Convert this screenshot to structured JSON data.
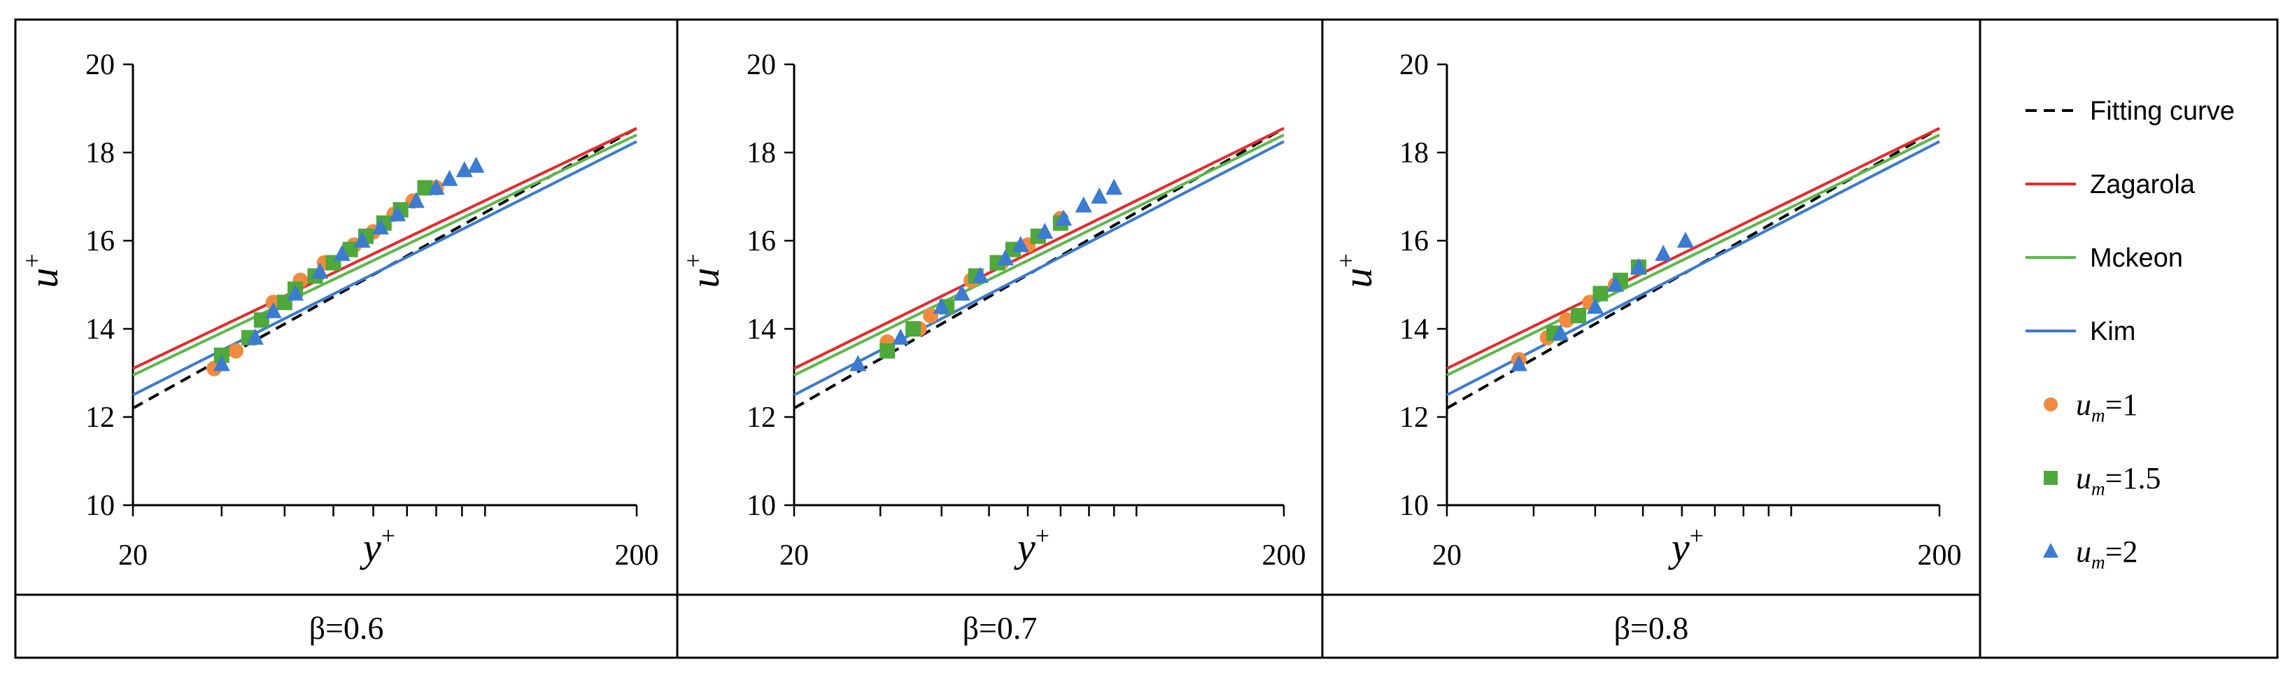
{
  "figure": {
    "panel_captions": [
      "β=0.6",
      "β=0.7",
      "β=0.8"
    ],
    "legend": [
      {
        "label": "Fitting curve",
        "kind": "dashed-line",
        "color": "#000000"
      },
      {
        "label": "Zagarola",
        "kind": "line",
        "color": "#e8292b"
      },
      {
        "label": "Mckeon",
        "kind": "line",
        "color": "#5cb84a"
      },
      {
        "label": "Kim",
        "kind": "line",
        "color": "#3b7bd0"
      },
      {
        "label_var": "u",
        "label_sub": "m",
        "label_rest": "=1",
        "kind": "circle",
        "color": "#f08a3e"
      },
      {
        "label_var": "u",
        "label_sub": "m",
        "label_rest": "=1.5",
        "kind": "square",
        "color": "#4ea83a"
      },
      {
        "label_var": "u",
        "label_sub": "m",
        "label_rest": "=2",
        "kind": "triangle",
        "color": "#3b7bd0"
      }
    ]
  },
  "chart_data": [
    {
      "type": "scatter",
      "caption": "β=0.6",
      "xlabel_var": "y",
      "xlabel_sup": "+",
      "ylabel_var": "u",
      "ylabel_sup": "+",
      "x_scale": "log",
      "xlim": [
        20,
        200
      ],
      "ylim": [
        10,
        20
      ],
      "x_tick_labels": [
        "20",
        "200"
      ],
      "y_ticks": [
        10,
        12,
        14,
        16,
        18,
        20
      ],
      "lines": [
        {
          "name": "Fitting curve",
          "style": "dashed",
          "color": "#000000",
          "points": [
            [
              20,
              12.2
            ],
            [
              200,
              18.55
            ]
          ]
        },
        {
          "name": "Zagarola",
          "style": "solid",
          "color": "#e8292b",
          "points": [
            [
              20,
              13.1
            ],
            [
              200,
              18.55
            ]
          ]
        },
        {
          "name": "Mckeon",
          "style": "solid",
          "color": "#5cb84a",
          "points": [
            [
              20,
              12.95
            ],
            [
              200,
              18.4
            ]
          ]
        },
        {
          "name": "Kim",
          "style": "solid",
          "color": "#3b7bd0",
          "points": [
            [
              20,
              12.5
            ],
            [
              200,
              18.25
            ]
          ]
        }
      ],
      "series": [
        {
          "name": "um=1",
          "marker": "circle",
          "color": "#f08a3e",
          "points": [
            [
              29,
              13.1
            ],
            [
              32,
              13.5
            ],
            [
              38,
              14.6
            ],
            [
              43,
              15.1
            ],
            [
              48,
              15.5
            ],
            [
              55,
              15.9
            ],
            [
              60,
              16.2
            ],
            [
              66,
              16.6
            ],
            [
              72,
              16.9
            ],
            [
              80,
              17.2
            ]
          ]
        },
        {
          "name": "um=1.5",
          "marker": "square",
          "color": "#4ea83a",
          "points": [
            [
              30,
              13.4
            ],
            [
              34,
              13.8
            ],
            [
              36,
              14.2
            ],
            [
              40,
              14.6
            ],
            [
              42,
              14.9
            ],
            [
              46,
              15.2
            ],
            [
              50,
              15.5
            ],
            [
              54,
              15.8
            ],
            [
              58,
              16.1
            ],
            [
              63,
              16.4
            ],
            [
              68,
              16.7
            ],
            [
              76,
              17.2
            ]
          ]
        },
        {
          "name": "um=2",
          "marker": "triangle",
          "color": "#3b7bd0",
          "points": [
            [
              30,
              13.2
            ],
            [
              35,
              13.8
            ],
            [
              38,
              14.4
            ],
            [
              42,
              14.8
            ],
            [
              47,
              15.3
            ],
            [
              52,
              15.7
            ],
            [
              57,
              16.0
            ],
            [
              62,
              16.3
            ],
            [
              67,
              16.6
            ],
            [
              73,
              16.9
            ],
            [
              80,
              17.2
            ],
            [
              85,
              17.4
            ],
            [
              91,
              17.6
            ],
            [
              96,
              17.7
            ]
          ]
        }
      ]
    },
    {
      "type": "scatter",
      "caption": "β=0.7",
      "xlabel_var": "y",
      "xlabel_sup": "+",
      "ylabel_var": "u",
      "ylabel_sup": "+",
      "x_scale": "log",
      "xlim": [
        20,
        200
      ],
      "ylim": [
        10,
        20
      ],
      "x_tick_labels": [
        "20",
        "200"
      ],
      "y_ticks": [
        10,
        12,
        14,
        16,
        18,
        20
      ],
      "lines": [
        {
          "name": "Fitting curve",
          "style": "dashed",
          "color": "#000000",
          "points": [
            [
              20,
              12.2
            ],
            [
              200,
              18.55
            ]
          ]
        },
        {
          "name": "Zagarola",
          "style": "solid",
          "color": "#e8292b",
          "points": [
            [
              20,
              13.1
            ],
            [
              200,
              18.55
            ]
          ]
        },
        {
          "name": "Mckeon",
          "style": "solid",
          "color": "#5cb84a",
          "points": [
            [
              20,
              12.95
            ],
            [
              200,
              18.4
            ]
          ]
        },
        {
          "name": "Kim",
          "style": "solid",
          "color": "#3b7bd0",
          "points": [
            [
              20,
              12.5
            ],
            [
              200,
              18.25
            ]
          ]
        }
      ],
      "series": [
        {
          "name": "um=1",
          "marker": "circle",
          "color": "#f08a3e",
          "points": [
            [
              31,
              13.7
            ],
            [
              36,
              14.0
            ],
            [
              38,
              14.3
            ],
            [
              46,
              15.1
            ],
            [
              53,
              15.5
            ],
            [
              60,
              15.9
            ],
            [
              70,
              16.5
            ]
          ]
        },
        {
          "name": "um=1.5",
          "marker": "square",
          "color": "#4ea83a",
          "points": [
            [
              31,
              13.5
            ],
            [
              35,
              14.0
            ],
            [
              41,
              14.5
            ],
            [
              47,
              15.2
            ],
            [
              52,
              15.5
            ],
            [
              56,
              15.8
            ],
            [
              63,
              16.1
            ],
            [
              70,
              16.4
            ]
          ]
        },
        {
          "name": "um=2",
          "marker": "triangle",
          "color": "#3b7bd0",
          "points": [
            [
              27,
              13.2
            ],
            [
              33,
              13.8
            ],
            [
              40,
              14.5
            ],
            [
              44,
              14.8
            ],
            [
              48,
              15.2
            ],
            [
              54,
              15.6
            ],
            [
              58,
              15.9
            ],
            [
              65,
              16.2
            ],
            [
              71,
              16.5
            ],
            [
              78,
              16.8
            ],
            [
              84,
              17.0
            ],
            [
              90,
              17.2
            ]
          ]
        }
      ]
    },
    {
      "type": "scatter",
      "caption": "β=0.8",
      "xlabel_var": "y",
      "xlabel_sup": "+",
      "ylabel_var": "u",
      "ylabel_sup": "+",
      "x_scale": "log",
      "xlim": [
        20,
        200
      ],
      "ylim": [
        10,
        20
      ],
      "x_tick_labels": [
        "20",
        "200"
      ],
      "y_ticks": [
        10,
        12,
        14,
        16,
        18,
        20
      ],
      "lines": [
        {
          "name": "Fitting curve",
          "style": "dashed",
          "color": "#000000",
          "points": [
            [
              20,
              12.2
            ],
            [
              200,
              18.55
            ]
          ]
        },
        {
          "name": "Zagarola",
          "style": "solid",
          "color": "#e8292b",
          "points": [
            [
              20,
              13.1
            ],
            [
              200,
              18.55
            ]
          ]
        },
        {
          "name": "Mckeon",
          "style": "solid",
          "color": "#5cb84a",
          "points": [
            [
              20,
              12.95
            ],
            [
              200,
              18.4
            ]
          ]
        },
        {
          "name": "Kim",
          "style": "solid",
          "color": "#3b7bd0",
          "points": [
            [
              20,
              12.5
            ],
            [
              200,
              18.25
            ]
          ]
        }
      ],
      "series": [
        {
          "name": "um=1",
          "marker": "circle",
          "color": "#f08a3e",
          "points": [
            [
              28,
              13.3
            ],
            [
              32,
              13.8
            ],
            [
              35,
              14.2
            ],
            [
              39,
              14.6
            ],
            [
              44,
              15.0
            ]
          ]
        },
        {
          "name": "um=1.5",
          "marker": "square",
          "color": "#4ea83a",
          "points": [
            [
              33,
              13.9
            ],
            [
              37,
              14.3
            ],
            [
              41,
              14.8
            ],
            [
              45,
              15.1
            ],
            [
              49,
              15.4
            ]
          ]
        },
        {
          "name": "um=2",
          "marker": "triangle",
          "color": "#3b7bd0",
          "points": [
            [
              28,
              13.2
            ],
            [
              34,
              13.9
            ],
            [
              40,
              14.5
            ],
            [
              44,
              15.0
            ],
            [
              49,
              15.4
            ],
            [
              55,
              15.7
            ],
            [
              61,
              16.0
            ]
          ]
        }
      ]
    }
  ]
}
